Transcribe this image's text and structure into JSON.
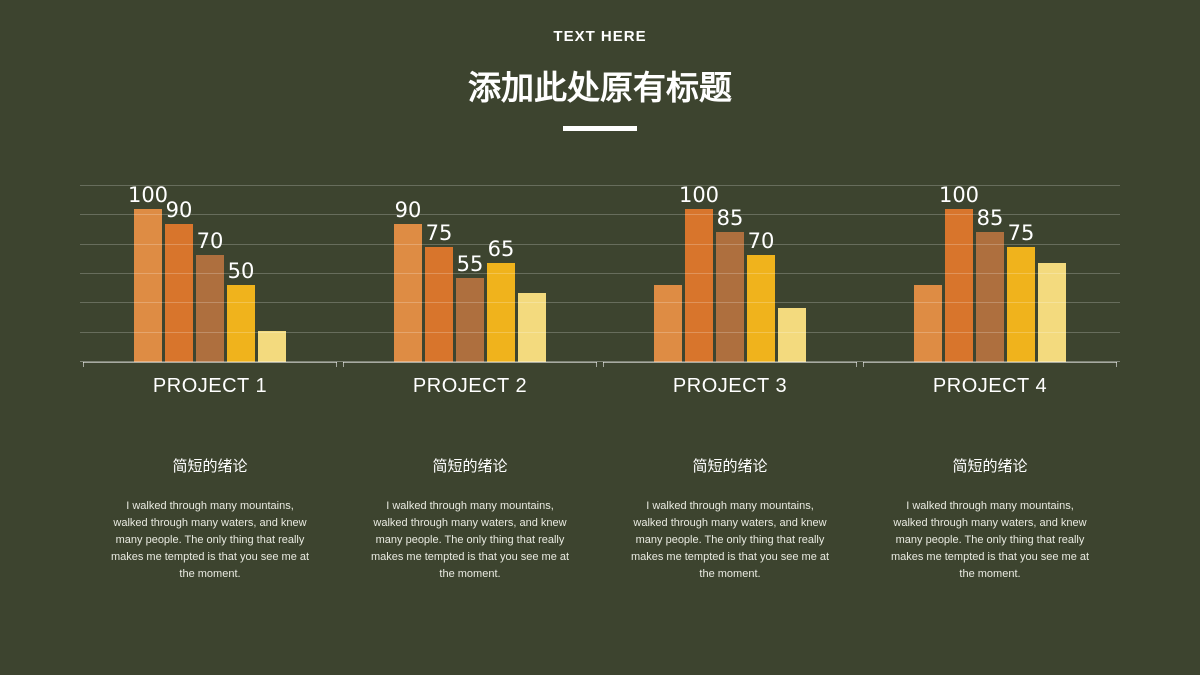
{
  "slide": {
    "kicker": "TEXT HERE",
    "title": "添加此处原有标题"
  },
  "colors": {
    "background": "#3D442F",
    "bar_palette": [
      "#DE8C44",
      "#D8752C",
      "#AE6F3E",
      "#F0B31C",
      "#F3DA7E"
    ],
    "gridline": "rgba(255,255,255,0.22)",
    "axis": "rgba(255,255,255,0.55)",
    "text": "#FFFFFF"
  },
  "chart_data": {
    "type": "bar",
    "title": "添加此处原有标题",
    "xlabel": "",
    "ylabel": "",
    "ylim": [
      0,
      115
    ],
    "gridline_count": 7,
    "legend": null,
    "groups": [
      {
        "name": "PROJECT 1",
        "values": [
          100,
          90,
          70,
          50,
          20
        ],
        "labels": [
          "100",
          "90",
          "70",
          "50",
          ""
        ]
      },
      {
        "name": "PROJECT 2",
        "values": [
          90,
          75,
          55,
          65,
          45
        ],
        "labels": [
          "90",
          "75",
          "55",
          "65",
          ""
        ]
      },
      {
        "name": "PROJECT 3",
        "values": [
          50,
          100,
          85,
          70,
          35
        ],
        "labels": [
          "",
          "100",
          "85",
          "70",
          ""
        ]
      },
      {
        "name": "PROJECT 4",
        "values": [
          50,
          100,
          85,
          75,
          65
        ],
        "labels": [
          "",
          "100",
          "85",
          "75",
          ""
        ]
      }
    ]
  },
  "projects": [
    {
      "title": "PROJECT 1",
      "subtitle": "简短的绪论",
      "body": "I walked through many mountains, walked through many waters, and knew many people. The only thing that really makes me tempted is that you see me at the moment."
    },
    {
      "title": "PROJECT 2",
      "subtitle": "简短的绪论",
      "body": "I walked through many mountains, walked through many waters, and knew many people. The only thing that really makes me tempted is that you see me at the moment."
    },
    {
      "title": "PROJECT 3",
      "subtitle": "简短的绪论",
      "body": "I walked through many mountains, walked through many waters, and knew many people. The only thing that really makes me tempted is that you see me at the moment."
    },
    {
      "title": "PROJECT 4",
      "subtitle": "简短的绪论",
      "body": "I walked through many mountains, walked through many waters, and knew many people. The only thing that really makes me tempted is that you see me at the moment."
    }
  ]
}
